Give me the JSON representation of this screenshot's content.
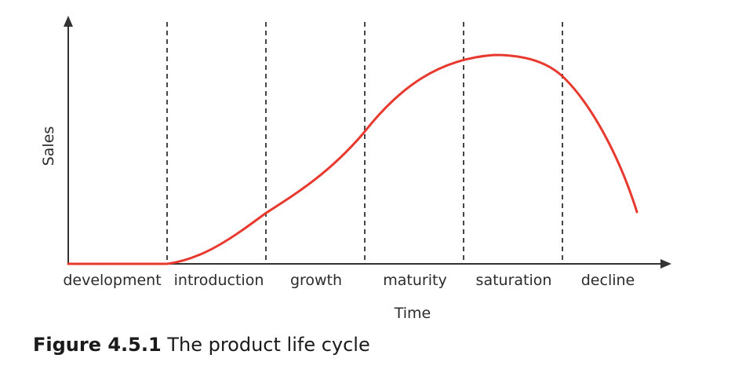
{
  "diagram": {
    "y_axis_label": "Sales",
    "x_axis_label": "Time",
    "stages": [
      "development",
      "introduction",
      "growth",
      "maturity",
      "saturation",
      "decline"
    ],
    "curve_color": "#e8392f",
    "axis_color": "#333333",
    "divider_color": "#333333"
  },
  "caption": {
    "number": "Figure 4.5.1",
    "text": "The product life cycle"
  }
}
